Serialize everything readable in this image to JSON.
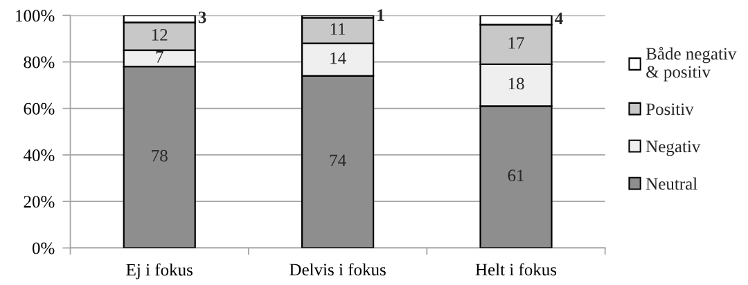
{
  "chart_data": {
    "type": "bar",
    "stacked": true,
    "categories": [
      "Ej i fokus",
      "Delvis i fokus",
      "Helt i fokus"
    ],
    "series": [
      {
        "name": "Neutral",
        "color": "#8e8e8e",
        "values": [
          78,
          74,
          61
        ]
      },
      {
        "name": "Negativ",
        "color": "#efefef",
        "values": [
          7,
          14,
          18
        ]
      },
      {
        "name": "Positiv",
        "color": "#c8c8c8",
        "values": [
          12,
          11,
          17
        ]
      },
      {
        "name": "Både negativ & positiv",
        "color": "#ffffff",
        "values": [
          3,
          1,
          4
        ]
      }
    ],
    "ylim": [
      0,
      100
    ],
    "yticks": [
      {
        "value": 0,
        "label": "0%"
      },
      {
        "value": 20,
        "label": "20%"
      },
      {
        "value": 40,
        "label": "40%"
      },
      {
        "value": 60,
        "label": "60%"
      },
      {
        "value": 80,
        "label": "80%"
      },
      {
        "value": 100,
        "label": "100%"
      }
    ],
    "grid": "y",
    "legend": "right",
    "data_labels": true
  }
}
